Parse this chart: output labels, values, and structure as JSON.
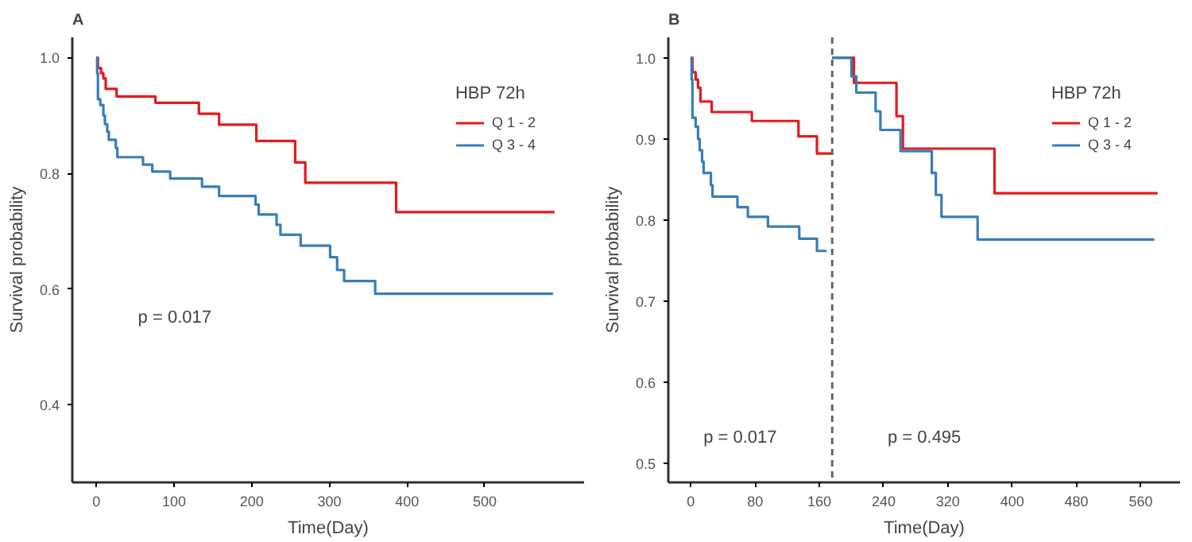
{
  "chart_data": [
    {
      "type": "step",
      "title": "A",
      "xlabel": "Time(Day)",
      "ylabel": "Survival probability",
      "legend_title": "HBP 72h",
      "legend": "top right",
      "grid": false,
      "xlim": [
        -31,
        628
      ],
      "ylim": [
        0.266,
        1.035
      ],
      "xticks": [
        0,
        100,
        200,
        300,
        400,
        500
      ],
      "yticks": [
        0.4,
        0.6,
        0.8,
        {
          "value": 1.0,
          "label": "1.0"
        }
      ],
      "annotations": [
        "p = 0.017"
      ],
      "series": [
        {
          "name": "Q 1 - 2",
          "color": "#e41a1c",
          "x": [
            0,
            2,
            6,
            9,
            12,
            26,
            76,
            132,
            158,
            206,
            256,
            269,
            386,
            590
          ],
          "values": [
            1.0,
            0.982,
            0.973,
            0.964,
            0.946,
            0.933,
            0.922,
            0.903,
            0.884,
            0.856,
            0.819,
            0.784,
            0.733,
            0.733
          ]
        },
        {
          "name": "Q 3 - 4",
          "color": "#377eb8",
          "x": [
            0,
            1,
            2,
            5,
            9,
            11,
            14,
            16,
            25,
            27,
            60,
            72,
            95,
            136,
            158,
            205,
            209,
            232,
            237,
            263,
            301,
            310,
            319,
            359,
            588
          ],
          "values": [
            1.0,
            0.973,
            0.928,
            0.918,
            0.9,
            0.885,
            0.872,
            0.858,
            0.844,
            0.828,
            0.815,
            0.803,
            0.791,
            0.777,
            0.761,
            0.746,
            0.729,
            0.711,
            0.694,
            0.675,
            0.655,
            0.633,
            0.614,
            0.592,
            0.592
          ]
        }
      ]
    },
    {
      "type": "step",
      "title": "B",
      "xlabel": "Time(Day)",
      "ylabel": "Survival probability",
      "legend_title": "HBP 72h",
      "legend": "top right",
      "grid": false,
      "xlim": [
        -28,
        609
      ],
      "ylim": [
        0.477,
        1.025
      ],
      "xticks": [
        0,
        80,
        160,
        240,
        320,
        400,
        480,
        560
      ],
      "yticks": [
        0.5,
        0.6,
        0.7,
        0.8,
        0.9,
        {
          "value": 1.0,
          "label": "1.0"
        }
      ],
      "ref_lines": [
        {
          "axis": "x",
          "value": 176,
          "label": null,
          "color": "#666666",
          "line_style": "dashed"
        }
      ],
      "annotations": [
        "p = 0.017",
        "p = 0.495"
      ],
      "series": [
        {
          "name": "Q 1 - 2",
          "color": "#e41a1c",
          "x": [
            0,
            2,
            6,
            9,
            12,
            26,
            76,
            134,
            157,
            176
          ],
          "values": [
            1.0,
            0.982,
            0.973,
            0.963,
            0.946,
            0.933,
            0.922,
            0.903,
            0.882,
            0.882
          ]
        },
        {
          "name": "Q 3 - 4",
          "color": "#377eb8",
          "x": [
            0,
            1,
            2,
            6,
            9,
            11,
            14,
            16,
            25,
            27,
            58,
            71,
            96,
            135,
            157,
            169
          ],
          "values": [
            1.0,
            0.973,
            0.926,
            0.915,
            0.9,
            0.886,
            0.872,
            0.858,
            0.843,
            0.829,
            0.816,
            0.804,
            0.792,
            0.777,
            0.762,
            0.762
          ]
        },
        {
          "color": "#e41a1c",
          "x": [
            176,
            203,
            256,
            264,
            378,
            581
          ],
          "values": [
            1.0,
            0.969,
            0.928,
            0.888,
            0.833,
            0.833
          ]
        },
        {
          "color": "#377eb8",
          "x": [
            176,
            200,
            206,
            230,
            236,
            261,
            300,
            305,
            312,
            357,
            577
          ],
          "values": [
            1.0,
            0.977,
            0.957,
            0.934,
            0.911,
            0.885,
            0.858,
            0.831,
            0.804,
            0.776,
            0.776
          ]
        }
      ]
    }
  ]
}
